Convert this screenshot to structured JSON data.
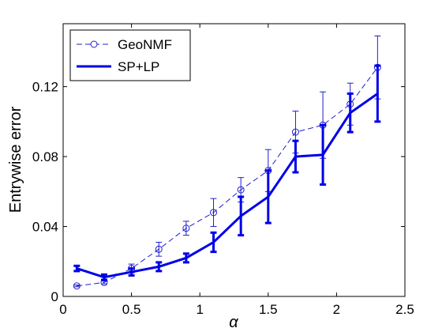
{
  "chart_data": {
    "type": "line",
    "xlabel": "α",
    "ylabel": "Entrywise error",
    "xlim": [
      0,
      2.5
    ],
    "ylim": [
      0,
      0.156
    ],
    "xticks": [
      0,
      0.5,
      1,
      1.5,
      2,
      2.5
    ],
    "xtick_labels": [
      "0",
      "0.5",
      "1",
      "1.5",
      "2",
      "2.5"
    ],
    "yticks": [
      0,
      0.04,
      0.08,
      0.12
    ],
    "ytick_labels": [
      "0",
      "0.04",
      "0.08",
      "0.12"
    ],
    "grid": false,
    "legend_position": "top-left",
    "x": [
      0.1,
      0.3,
      0.5,
      0.7,
      0.9,
      1.1,
      1.3,
      1.5,
      1.7,
      1.9,
      2.1,
      2.3
    ],
    "series": [
      {
        "name": "GeoNMF",
        "color": "#1f1fd0",
        "style": "dashed",
        "marker": "circle",
        "values": [
          0.006,
          0.008,
          0.016,
          0.027,
          0.039,
          0.048,
          0.061,
          0.072,
          0.094,
          0.098,
          0.11,
          0.131
        ],
        "err": [
          0.0005,
          0.0008,
          0.0025,
          0.004,
          0.004,
          0.008,
          0.007,
          0.012,
          0.012,
          0.019,
          0.012,
          0.018
        ]
      },
      {
        "name": "SP+LP",
        "color": "#0000e6",
        "style": "solid",
        "marker": "none",
        "values": [
          0.016,
          0.011,
          0.014,
          0.017,
          0.022,
          0.031,
          0.046,
          0.057,
          0.08,
          0.081,
          0.105,
          0.116
        ],
        "err": [
          0.0015,
          0.0015,
          0.002,
          0.0025,
          0.0025,
          0.0055,
          0.011,
          0.015,
          0.009,
          0.017,
          0.011,
          0.016
        ]
      }
    ]
  }
}
